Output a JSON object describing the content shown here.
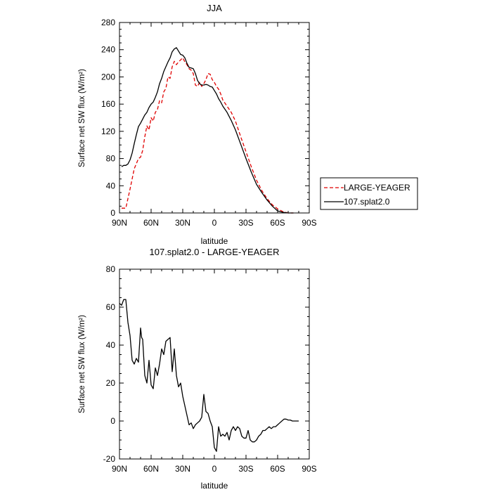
{
  "chart_data": [
    {
      "type": "line",
      "title": "JJA",
      "xlabel": "latitude",
      "ylabel": "Surface net SW flux (W/m²)",
      "xlim": [
        90,
        -90
      ],
      "ylim": [
        0,
        280
      ],
      "x_ticks": [
        90,
        60,
        30,
        0,
        -30,
        -60,
        -90
      ],
      "x_tick_labels": [
        "90N",
        "60N",
        "30N",
        "0",
        "30S",
        "60S",
        "90S"
      ],
      "y_ticks": [
        0,
        40,
        80,
        120,
        160,
        200,
        240,
        280
      ],
      "y_tick_labels": [
        "0",
        "40",
        "80",
        "120",
        "160",
        "200",
        "240",
        "280"
      ],
      "legend_position": "outside-right",
      "series": [
        {
          "name": "LARGE-YEAGER",
          "color": "#e00000",
          "dash": "dashed",
          "x": [
            88,
            84,
            80,
            76,
            72,
            70,
            68,
            66,
            64,
            62,
            60,
            58,
            56,
            54,
            52,
            50,
            48,
            46,
            44,
            42,
            40,
            38,
            36,
            34,
            32,
            30,
            28,
            26,
            24,
            22,
            20,
            18,
            16,
            14,
            12,
            10,
            8,
            6,
            4,
            2,
            0,
            -2,
            -4,
            -6,
            -8,
            -12,
            -16,
            -20,
            -25,
            -30,
            -35,
            -40,
            -45,
            -50,
            -55,
            -60,
            -65,
            -70,
            -72,
            -75
          ],
          "y": [
            7,
            7,
            35,
            65,
            80,
            82,
            92,
            112,
            128,
            122,
            140,
            135,
            148,
            152,
            165,
            162,
            178,
            183,
            200,
            198,
            215,
            223,
            218,
            222,
            225,
            228,
            222,
            218,
            212,
            210,
            205,
            188,
            186,
            192,
            186,
            190,
            196,
            205,
            204,
            196,
            192,
            186,
            182,
            175,
            166,
            157,
            148,
            135,
            112,
            90,
            68,
            48,
            33,
            21,
            12,
            6,
            2,
            0,
            0,
            0
          ]
        },
        {
          "name": "107.splat2.0",
          "color": "#000000",
          "dash": "solid",
          "x": [
            88,
            86,
            84,
            82,
            80,
            78,
            76,
            74,
            72,
            70,
            68,
            66,
            64,
            62,
            60,
            58,
            56,
            54,
            52,
            50,
            48,
            46,
            44,
            42,
            40,
            38,
            36,
            34,
            32,
            30,
            28,
            26,
            24,
            22,
            20,
            18,
            16,
            14,
            12,
            10,
            8,
            6,
            4,
            2,
            0,
            -2,
            -4,
            -6,
            -8,
            -12,
            -16,
            -20,
            -25,
            -30,
            -35,
            -40,
            -45,
            -50,
            -55,
            -60,
            -65,
            -70,
            -72,
            -75
          ],
          "y": [
            68,
            70,
            70,
            72,
            78,
            88,
            102,
            115,
            127,
            132,
            138,
            144,
            148,
            155,
            160,
            163,
            170,
            178,
            190,
            198,
            208,
            215,
            222,
            228,
            237,
            241,
            243,
            238,
            233,
            232,
            228,
            220,
            214,
            213,
            212,
            205,
            195,
            190,
            188,
            188,
            189,
            188,
            186,
            185,
            180,
            175,
            168,
            163,
            157,
            148,
            136,
            122,
            101,
            80,
            60,
            42,
            30,
            19,
            10,
            3,
            1,
            0,
            0,
            0
          ]
        }
      ]
    },
    {
      "type": "line",
      "title": "107.splat2.0 - LARGE-YEAGER",
      "xlabel": "latitude",
      "ylabel": "Surface net SW flux (W/m²)",
      "xlim": [
        90,
        -90
      ],
      "ylim": [
        -20,
        80
      ],
      "x_ticks": [
        90,
        60,
        30,
        0,
        -30,
        -60,
        -90
      ],
      "x_tick_labels": [
        "90N",
        "60N",
        "30N",
        "0",
        "30S",
        "60S",
        "90S"
      ],
      "y_ticks": [
        -20,
        0,
        20,
        40,
        60,
        80
      ],
      "y_tick_labels": [
        "-20",
        "0",
        "20",
        "40",
        "60",
        "80"
      ],
      "series": [
        {
          "color": "#000000",
          "dash": "solid",
          "x": [
            90,
            88,
            86,
            84,
            82,
            80,
            78,
            76,
            74,
            72,
            70,
            69,
            68,
            66,
            64,
            62,
            60,
            58,
            56,
            54,
            52,
            50,
            48,
            46,
            44,
            42,
            40,
            38,
            36,
            34,
            32,
            30,
            28,
            26,
            24,
            22,
            20,
            18,
            16,
            14,
            12,
            10,
            8,
            6,
            4,
            2,
            0,
            -2,
            -4,
            -6,
            -8,
            -10,
            -12,
            -14,
            -16,
            -18,
            -20,
            -22,
            -24,
            -26,
            -28,
            -30,
            -32,
            -34,
            -36,
            -38,
            -40,
            -42,
            -44,
            -46,
            -48,
            -50,
            -52,
            -54,
            -56,
            -58,
            -60,
            -62,
            -64,
            -66,
            -68,
            -70,
            -72,
            -74,
            -76,
            -78,
            -80
          ],
          "y": [
            62,
            61,
            64,
            64,
            52,
            45,
            32,
            30,
            33,
            31,
            49,
            44,
            43,
            24,
            20,
            32,
            19,
            17,
            28,
            24,
            30,
            38,
            35,
            42,
            43,
            44,
            26,
            38,
            24,
            18,
            20,
            13,
            8,
            3,
            -2,
            -1,
            -4,
            -2,
            -1,
            0,
            2,
            14,
            5,
            4,
            0,
            -3,
            -14,
            -16,
            -3,
            -8,
            -7,
            -8,
            -6,
            -10,
            -5,
            -3,
            -5,
            -3,
            -4,
            -8,
            -9,
            -9,
            -5,
            -10,
            -11,
            -11,
            -10,
            -8,
            -7,
            -5,
            -5,
            -4,
            -3,
            -4,
            -3,
            -3,
            -2,
            -1,
            0,
            1,
            1,
            0.5,
            0.5,
            0,
            0,
            0,
            0
          ]
        }
      ]
    }
  ]
}
